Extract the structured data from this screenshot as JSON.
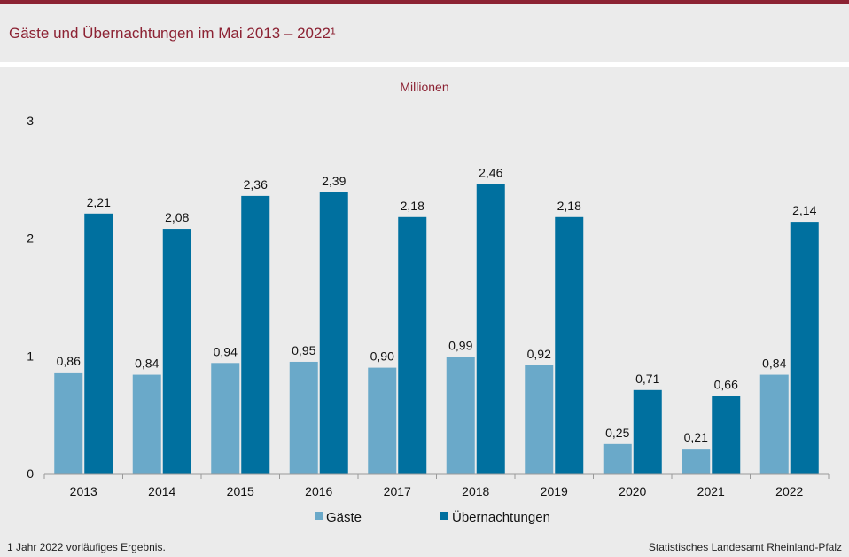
{
  "header": {
    "title": "Gäste und Übernachtungen im Mai 2013 – 2022¹"
  },
  "footer": {
    "footnote": "1 Jahr  2022  vorläufiges  Ergebnis.",
    "source": "Statistisches Landesamt  Rheinland-Pfalz"
  },
  "colors": {
    "accent": "#8c2233",
    "gaeste": "#6aa9c9",
    "uebernachtungen": "#00709f",
    "background": "#ebebeb"
  },
  "chart_data": {
    "type": "bar",
    "title": "Gäste und Übernachtungen im Mai 2013 – 2022¹",
    "unit_label": "Millionen",
    "xlabel": "",
    "ylabel": "",
    "ylim": [
      0,
      3
    ],
    "yticks": [
      0,
      1,
      2,
      3
    ],
    "grid": false,
    "legend_position": "bottom",
    "categories": [
      "2013",
      "2014",
      "2015",
      "2016",
      "2017",
      "2018",
      "2019",
      "2020",
      "2021",
      "2022"
    ],
    "series": [
      {
        "name": "Gäste",
        "color": "#6aa9c9",
        "values": [
          0.86,
          0.84,
          0.94,
          0.95,
          0.9,
          0.99,
          0.92,
          0.25,
          0.21,
          0.84
        ],
        "labels": [
          "0,86",
          "0,84",
          "0,94",
          "0,95",
          "0,90",
          "0,99",
          "0,92",
          "0,25",
          "0,21",
          "0,84"
        ]
      },
      {
        "name": "Übernachtungen",
        "color": "#00709f",
        "values": [
          2.21,
          2.08,
          2.36,
          2.39,
          2.18,
          2.46,
          2.18,
          0.71,
          0.66,
          2.14
        ],
        "labels": [
          "2,21",
          "2,08",
          "2,36",
          "2,39",
          "2,18",
          "2,46",
          "2,18",
          "0,71",
          "0,66",
          "2,14"
        ]
      }
    ]
  }
}
